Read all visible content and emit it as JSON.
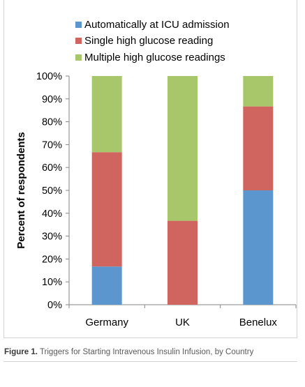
{
  "figure": {
    "caption_label": "Figure 1.",
    "caption_text": "Triggers for Starting Intravenous Insulin Infusion, by Country"
  },
  "chart_data": {
    "type": "bar",
    "stacked": true,
    "title": "",
    "xlabel": "",
    "ylabel": "Percent of respondents",
    "ylim": [
      0,
      100
    ],
    "y_ticks": [
      "0%",
      "10%",
      "20%",
      "30%",
      "40%",
      "50%",
      "60%",
      "70%",
      "80%",
      "90%",
      "100%"
    ],
    "grid": false,
    "legend_position": "top",
    "categories": [
      "Germany",
      "UK",
      "Benelux"
    ],
    "series": [
      {
        "name": "Automatically at ICU admission",
        "color": "#5b96cf",
        "values": [
          16.7,
          0,
          50
        ]
      },
      {
        "name": "Single high glucose reading",
        "color": "#d06560",
        "values": [
          50,
          36.7,
          36.7
        ]
      },
      {
        "name": "Multiple high glucose readings",
        "color": "#a8c66a",
        "values": [
          33.3,
          63.3,
          13.3
        ]
      }
    ]
  }
}
